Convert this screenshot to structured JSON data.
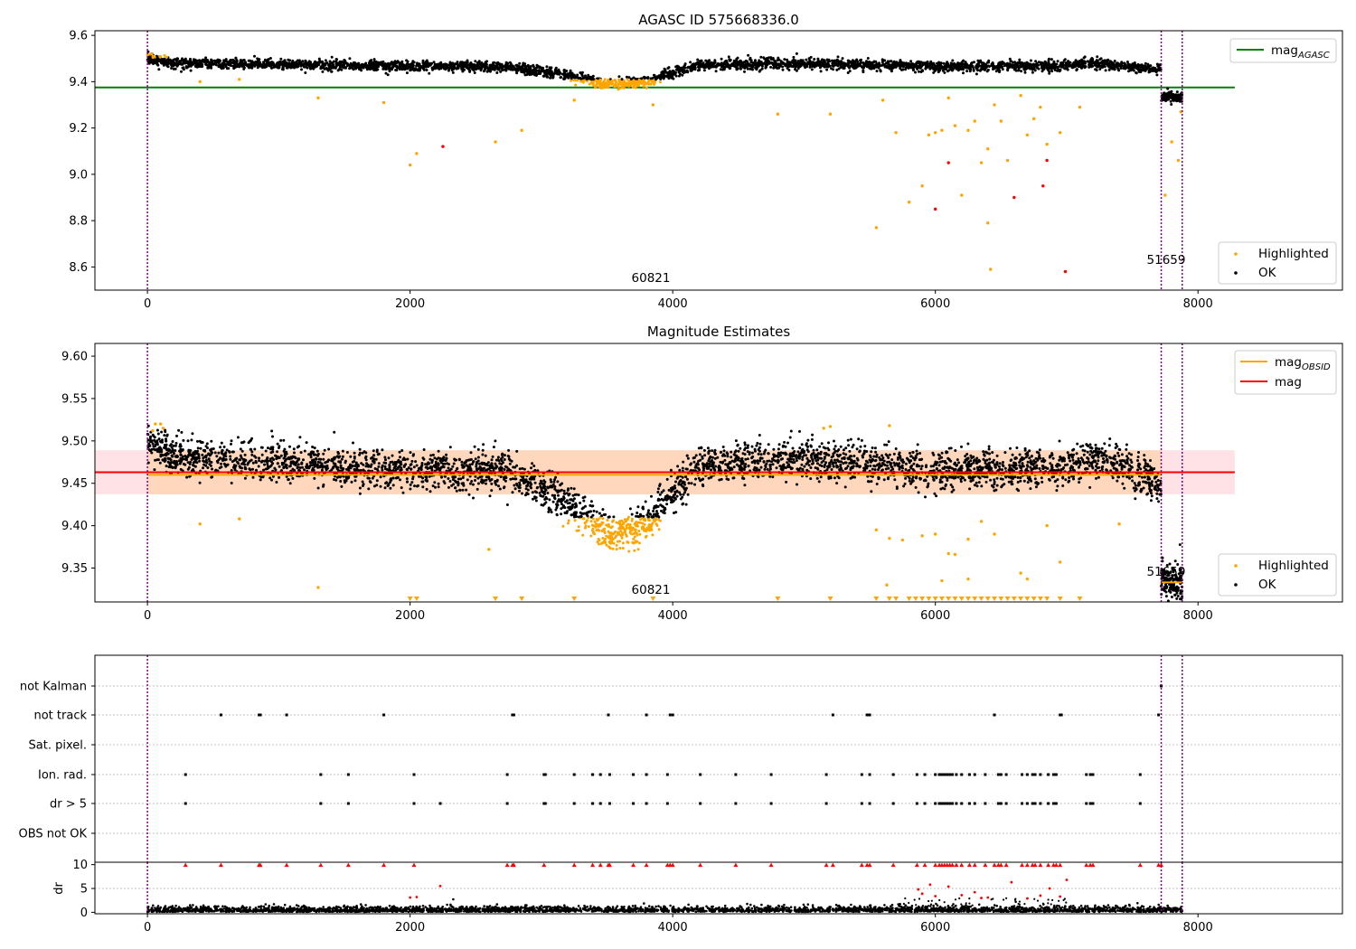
{
  "chart_data": [
    {
      "type": "scatter",
      "title": "AGASC ID 575668336.0",
      "xlim": [
        -400,
        9100
      ],
      "ylim": [
        8.5,
        9.62
      ],
      "xticks": [
        0,
        2000,
        4000,
        6000,
        8000
      ],
      "xtick_labels": [
        "0",
        "2000",
        "4000",
        "6000",
        "8000"
      ],
      "yticks": [
        8.6,
        8.8,
        9.0,
        9.2,
        9.4,
        9.6
      ],
      "ytick_labels": [
        "8.6",
        "8.8",
        "9.0",
        "9.2",
        "9.4",
        "9.6"
      ],
      "reference_lines": [
        {
          "name": "mag",
          "name_sub": "AGASC",
          "color": "#008000",
          "y": 9.375,
          "x_range": [
            -400,
            8280
          ]
        }
      ],
      "vlines": {
        "x": [
          0,
          7720,
          7880
        ],
        "color": "#800080",
        "style": "dotted"
      },
      "annotations": [
        {
          "text": "60821",
          "x": 3860,
          "y": 8.53
        },
        {
          "text": "51659",
          "x": 7800,
          "y": 8.63
        }
      ],
      "series": [
        {
          "name": "Highlighted",
          "color": "#FFA500",
          "marker": "dot"
        },
        {
          "name": "OK",
          "color": "#000000",
          "marker": "dot"
        }
      ],
      "trend": {
        "segments": [
          {
            "x": [
              0,
              7720
            ],
            "points": [
              [
                0,
                9.5
              ],
              [
                200,
                9.48
              ],
              [
                1000,
                9.475
              ],
              [
                2000,
                9.465
              ],
              [
                2700,
                9.465
              ],
              [
                3050,
                9.44
              ],
              [
                3250,
                9.42
              ],
              [
                3500,
                9.39
              ],
              [
                3800,
                9.4
              ],
              [
                4000,
                9.44
              ],
              [
                4200,
                9.47
              ],
              [
                5000,
                9.48
              ],
              [
                6000,
                9.465
              ],
              [
                7000,
                9.47
              ],
              [
                7250,
                9.48
              ],
              [
                7720,
                9.45
              ]
            ]
          },
          {
            "x": [
              7720,
              7880
            ],
            "points": [
              [
                7720,
                9.335
              ],
              [
                7880,
                9.33
              ]
            ]
          }
        ],
        "dip": {
          "x_range": [
            3050,
            3950
          ],
          "mag_threshold": 9.41
        }
      },
      "outliers_highlighted": [
        [
          400,
          9.4
        ],
        [
          700,
          9.41
        ],
        [
          1300,
          9.33
        ],
        [
          1800,
          9.31
        ],
        [
          2000,
          9.04
        ],
        [
          2050,
          9.09
        ],
        [
          2650,
          9.14
        ],
        [
          2850,
          9.19
        ],
        [
          3250,
          9.32
        ],
        [
          3850,
          9.3
        ],
        [
          4800,
          9.26
        ],
        [
          5200,
          9.26
        ],
        [
          5550,
          8.77
        ],
        [
          5600,
          9.32
        ],
        [
          5700,
          9.18
        ],
        [
          5800,
          8.88
        ],
        [
          5900,
          8.95
        ],
        [
          5950,
          9.17
        ],
        [
          6000,
          9.18
        ],
        [
          6050,
          9.19
        ],
        [
          6100,
          9.33
        ],
        [
          6150,
          9.21
        ],
        [
          6200,
          8.91
        ],
        [
          6250,
          9.19
        ],
        [
          6300,
          9.23
        ],
        [
          6350,
          9.05
        ],
        [
          6400,
          9.11
        ],
        [
          6400,
          8.79
        ],
        [
          6420,
          8.59
        ],
        [
          6450,
          9.3
        ],
        [
          6500,
          9.23
        ],
        [
          6550,
          9.06
        ],
        [
          6650,
          9.34
        ],
        [
          6700,
          9.17
        ],
        [
          6750,
          9.24
        ],
        [
          6800,
          9.29
        ],
        [
          6850,
          9.13
        ],
        [
          6950,
          9.18
        ],
        [
          7100,
          9.29
        ],
        [
          7800,
          9.14
        ],
        [
          7870,
          9.27
        ],
        [
          7850,
          9.06
        ],
        [
          7750,
          8.91
        ]
      ],
      "outliers_red": [
        [
          2250,
          9.12
        ],
        [
          6000,
          8.85
        ],
        [
          6100,
          9.05
        ],
        [
          6600,
          8.9
        ],
        [
          6850,
          9.06
        ],
        [
          6820,
          8.95
        ],
        [
          6990,
          8.58
        ]
      ]
    },
    {
      "type": "scatter",
      "title": "Magnitude Estimates",
      "xlim": [
        -400,
        9100
      ],
      "ylim": [
        9.31,
        9.615
      ],
      "xticks": [
        0,
        2000,
        4000,
        6000,
        8000
      ],
      "xtick_labels": [
        "0",
        "2000",
        "4000",
        "6000",
        "8000"
      ],
      "yticks": [
        9.35,
        9.4,
        9.45,
        9.5,
        9.55,
        9.6
      ],
      "ytick_labels": [
        "9.35",
        "9.40",
        "9.45",
        "9.50",
        "9.55",
        "9.60"
      ],
      "bands": [
        {
          "color": "#ffb6c1",
          "opacity": 0.4,
          "y": [
            9.437,
            9.489
          ],
          "x_range": [
            -400,
            8280
          ]
        },
        {
          "color": "#FFA500",
          "opacity": 0.18,
          "y": [
            9.437,
            9.489
          ],
          "x_range": [
            0,
            7720
          ]
        }
      ],
      "reference_lines": [
        {
          "name": "mag",
          "name_sub": "OBSID",
          "color": "#FFA500",
          "y": 9.46,
          "x_range": [
            0,
            7720
          ]
        },
        {
          "name": "mag",
          "name_sub": "OBSID",
          "color": "#FFA500",
          "y": 9.333,
          "x_range": [
            7720,
            7880
          ]
        },
        {
          "name": "mag",
          "color": "#FF0000",
          "y": 9.463,
          "x_range": [
            -400,
            8280
          ]
        }
      ],
      "vlines": {
        "x": [
          0,
          7720,
          7880
        ],
        "color": "#800080",
        "style": "dotted"
      },
      "annotations": [
        {
          "text": "60821",
          "x": 3860,
          "y": 9.316
        },
        {
          "text": "51659",
          "x": 7800,
          "y": 9.342
        }
      ],
      "series": [
        {
          "name": "Highlighted",
          "color": "#FFA500",
          "marker": "dot"
        },
        {
          "name": "OK",
          "color": "#000000",
          "marker": "dot"
        }
      ],
      "low_markers_x": [
        2000,
        2050,
        2650,
        2850,
        3250,
        3850,
        4800,
        5200,
        5550,
        5650,
        5700,
        5800,
        5850,
        5900,
        5950,
        6000,
        6050,
        6100,
        6150,
        6200,
        6250,
        6300,
        6350,
        6400,
        6450,
        6500,
        6550,
        6600,
        6650,
        6700,
        6750,
        6800,
        6850,
        6950,
        7100
      ],
      "outliers_highlighted": [
        [
          400,
          9.402
        ],
        [
          700,
          9.408
        ],
        [
          1300,
          9.327
        ],
        [
          2600,
          9.372
        ],
        [
          5150,
          9.515
        ],
        [
          5200,
          9.517
        ],
        [
          5550,
          9.395
        ],
        [
          5650,
          9.385
        ],
        [
          5750,
          9.383
        ],
        [
          5900,
          9.388
        ],
        [
          6000,
          9.39
        ],
        [
          6100,
          9.367
        ],
        [
          6150,
          9.366
        ],
        [
          6250,
          9.384
        ],
        [
          6350,
          9.405
        ],
        [
          6450,
          9.39
        ],
        [
          6650,
          9.344
        ],
        [
          6850,
          9.4
        ],
        [
          6950,
          9.357
        ],
        [
          7400,
          9.402
        ],
        [
          5650,
          9.518
        ],
        [
          5630,
          9.33
        ],
        [
          6050,
          9.335
        ],
        [
          6250,
          9.337
        ],
        [
          6700,
          9.337
        ],
        [
          60,
          9.52
        ],
        [
          100,
          9.52
        ],
        [
          120,
          9.515
        ],
        [
          40,
          9.512
        ]
      ]
    },
    {
      "type": "scatter",
      "title": "",
      "xlim": [
        -400,
        9100
      ],
      "categories": [
        "not Kalman",
        "not track",
        "Sat. pixel.",
        "Ion. rad.",
        "dr > 5",
        "OBS not OK"
      ],
      "vlines": {
        "x": [
          0,
          7720,
          7880
        ],
        "color": "#800080",
        "style": "dotted"
      },
      "flags": {
        "not Kalman": [
          7720
        ],
        "not track": [
          560,
          850,
          860,
          1060,
          1800,
          2780,
          2790,
          3510,
          3800,
          3980,
          4000,
          5220,
          5480,
          5500,
          6450,
          6950,
          6960,
          7700
        ],
        "Sat. pixel.": [],
        "Ion. rad.": [
          290,
          1320,
          1530,
          2030,
          2740,
          3020,
          3030,
          3250,
          3390,
          3450,
          3520,
          3700,
          3800,
          3960,
          4210,
          4480,
          4750,
          5170,
          5440,
          5500,
          5680,
          5860,
          5920,
          6000,
          6030,
          6050,
          6070,
          6090,
          6110,
          6130,
          6160,
          6200,
          6260,
          6300,
          6380,
          6480,
          6500,
          6540,
          6660,
          6700,
          6740,
          6760,
          6800,
          6860,
          6900,
          6920,
          7150,
          7180,
          7200,
          7560
        ],
        "dr > 5": [
          290,
          1320,
          1530,
          2030,
          2230,
          2740,
          3020,
          3030,
          3250,
          3390,
          3450,
          3520,
          3700,
          3800,
          3960,
          4210,
          4480,
          4750,
          5170,
          5440,
          5500,
          5680,
          5860,
          5920,
          6000,
          6030,
          6050,
          6070,
          6090,
          6110,
          6130,
          6160,
          6200,
          6260,
          6300,
          6380,
          6480,
          6500,
          6540,
          6660,
          6700,
          6740,
          6760,
          6800,
          6860,
          6900,
          6920,
          7150,
          7180,
          7200,
          7560
        ],
        "OBS not OK": []
      }
    },
    {
      "type": "scatter",
      "title": "",
      "xlim": [
        -400,
        9100
      ],
      "ylim": [
        -0.3,
        10.5
      ],
      "ylabel": "dr",
      "yticks": [
        0,
        5,
        10
      ],
      "ytick_labels": [
        "0",
        "5",
        "10"
      ],
      "xticks": [
        0,
        2000,
        4000,
        6000,
        8000
      ],
      "xtick_labels": [
        "0",
        "2000",
        "4000",
        "6000",
        "8000"
      ],
      "vlines": {
        "x": [
          0,
          7720,
          7880
        ],
        "color": "#800080",
        "style": "dotted"
      },
      "capped_red_x": [
        290,
        560,
        850,
        860,
        1060,
        1320,
        1530,
        1800,
        2030,
        2740,
        2780,
        2790,
        3020,
        3250,
        3390,
        3450,
        3510,
        3520,
        3700,
        3800,
        3960,
        3980,
        4000,
        4210,
        4480,
        4750,
        5170,
        5220,
        5440,
        5480,
        5500,
        5680,
        5860,
        5920,
        6000,
        6030,
        6050,
        6070,
        6090,
        6110,
        6130,
        6160,
        6200,
        6260,
        6300,
        6380,
        6450,
        6480,
        6500,
        6540,
        6660,
        6700,
        6740,
        6760,
        6800,
        6860,
        6900,
        6920,
        6950,
        7150,
        7180,
        7200,
        7560,
        7700,
        7720
      ],
      "red_points": [
        [
          2000,
          3.1
        ],
        [
          2050,
          3.2
        ],
        [
          2230,
          5.5
        ],
        [
          5870,
          4.8
        ],
        [
          5900,
          3.9
        ],
        [
          5960,
          5.8
        ],
        [
          6000,
          3.4
        ],
        [
          6100,
          5.4
        ],
        [
          6200,
          3.6
        ],
        [
          6300,
          4.2
        ],
        [
          6350,
          3.0
        ],
        [
          6400,
          3.1
        ],
        [
          6580,
          6.3
        ],
        [
          6700,
          2.9
        ],
        [
          6800,
          3.5
        ],
        [
          6870,
          5.0
        ],
        [
          7000,
          6.8
        ],
        [
          6950,
          3.3
        ]
      ]
    }
  ]
}
